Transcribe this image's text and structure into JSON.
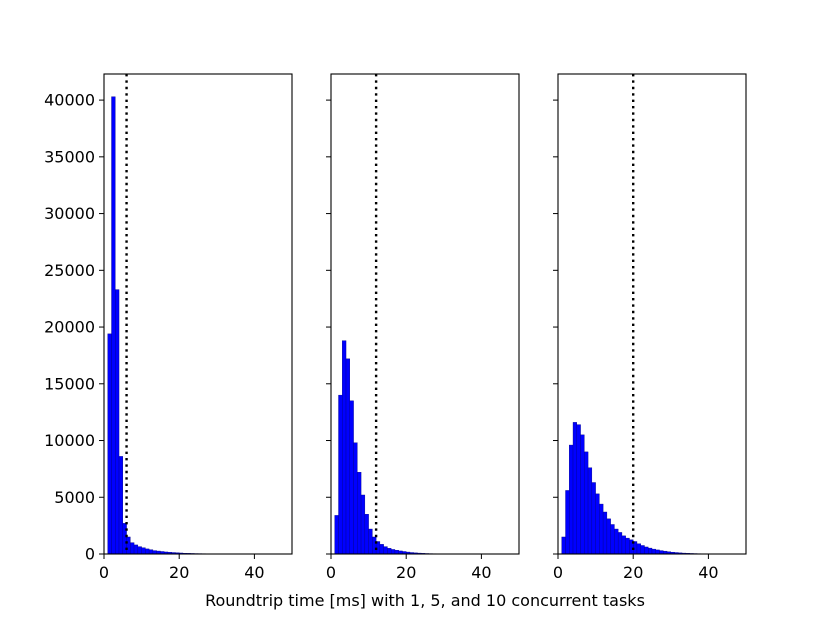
{
  "chart_data": [
    {
      "type": "bar",
      "subplot": 1,
      "concurrent_tasks": 1,
      "bin_width": 1,
      "bin_start": 1,
      "values": [
        19400,
        40300,
        23300,
        8600,
        2700,
        1500,
        1000,
        800,
        650,
        550,
        450,
        380,
        300,
        260,
        220,
        180,
        150,
        130,
        110,
        90,
        70,
        60,
        50,
        40,
        35,
        30,
        25,
        20,
        15,
        12,
        10,
        8,
        6,
        5,
        4,
        3,
        3,
        2,
        2,
        2
      ],
      "reference_line_x": 6,
      "xlim": [
        0,
        50
      ],
      "ylim": [
        0,
        42300
      ],
      "xticks": [
        0,
        20,
        40
      ],
      "yticks": [
        0,
        5000,
        10000,
        15000,
        20000,
        25000,
        30000,
        35000,
        40000
      ],
      "show_yticklabels": true
    },
    {
      "type": "bar",
      "subplot": 2,
      "concurrent_tasks": 5,
      "bin_width": 1,
      "bin_start": 1,
      "values": [
        3400,
        14000,
        18800,
        17200,
        13500,
        9800,
        7200,
        5200,
        3500,
        2200,
        1500,
        1100,
        850,
        650,
        500,
        400,
        330,
        270,
        220,
        170,
        130,
        100,
        80,
        60,
        45,
        35,
        28,
        22,
        17,
        13,
        10,
        8,
        6,
        5,
        4,
        3,
        2,
        2,
        1,
        1
      ],
      "reference_line_x": 12,
      "xlim": [
        0,
        50
      ],
      "ylim": [
        0,
        42300
      ],
      "xticks": [
        0,
        20,
        40
      ],
      "yticks": [
        0,
        5000,
        10000,
        15000,
        20000,
        25000,
        30000,
        35000,
        40000
      ],
      "show_yticklabels": false
    },
    {
      "type": "bar",
      "subplot": 3,
      "concurrent_tasks": 10,
      "bin_width": 1,
      "bin_start": 1,
      "values": [
        1500,
        5600,
        9600,
        11600,
        11400,
        10500,
        9000,
        7600,
        6300,
        5300,
        4400,
        3700,
        3100,
        2600,
        2200,
        1900,
        1600,
        1400,
        1250,
        1100,
        900,
        750,
        620,
        520,
        430,
        360,
        300,
        250,
        200,
        160,
        130,
        100,
        80,
        65,
        50,
        40,
        30,
        22,
        16,
        12
      ],
      "reference_line_x": 20,
      "xlim": [
        0,
        50
      ],
      "ylim": [
        0,
        42300
      ],
      "xticks": [
        0,
        20,
        40
      ],
      "yticks": [
        0,
        5000,
        10000,
        15000,
        20000,
        25000,
        30000,
        35000,
        40000
      ],
      "show_yticklabels": false
    }
  ],
  "xlabel": "Roundtrip time [ms] with 1, 5, and 10 concurrent tasks",
  "colors": {
    "bar_fill": "#0000ff",
    "bar_edge": "#00008b",
    "reference_line": "#000000",
    "axes": "#000000"
  }
}
